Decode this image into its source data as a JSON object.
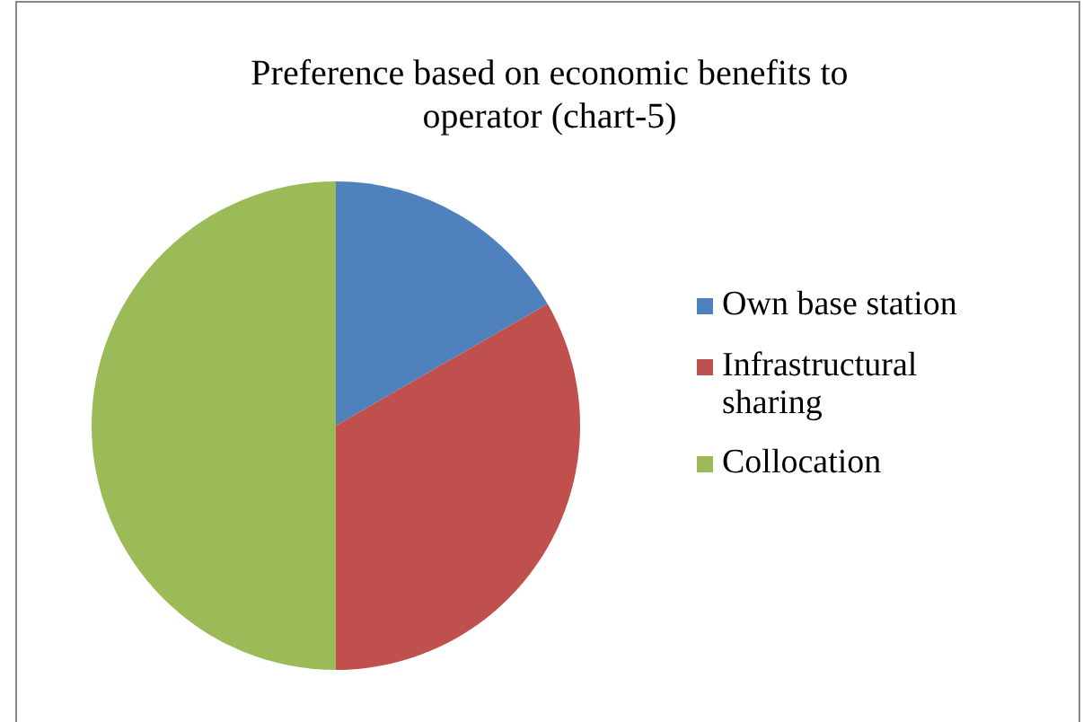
{
  "chart_data": {
    "type": "pie",
    "title": "Preference based on economic benefits to operator (chart-5)",
    "categories": [
      "Own base station",
      "Infrastructural sharing",
      "Collocation"
    ],
    "values": [
      16.7,
      33.3,
      50
    ],
    "colors": [
      "#4f81bd",
      "#c0504d",
      "#9bbb59"
    ],
    "legend": "right"
  }
}
